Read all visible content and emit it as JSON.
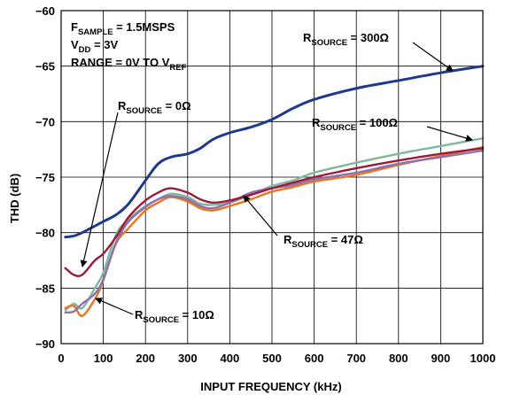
{
  "chart_data": {
    "type": "line",
    "xlabel": "INPUT FREQUENCY (kHz)",
    "ylabel": "THD (dB)",
    "xlim": [
      0,
      1000
    ],
    "ylim": [
      -90,
      -60
    ],
    "x_ticks": [
      "0",
      "100",
      "200",
      "300",
      "400",
      "500",
      "600",
      "700",
      "800",
      "900",
      "1000"
    ],
    "y_ticks": [
      "−60",
      "−65",
      "−70",
      "−75",
      "−80",
      "−85",
      "−90"
    ],
    "grid": true,
    "conditions": {
      "sample": {
        "main": "F",
        "sub": "SAMPLE",
        "rest": " = 1.5MSPS"
      },
      "vdd": {
        "main": "V",
        "sub": "DD",
        "rest": " = 3V"
      },
      "range": {
        "main": "RANGE = 0V TO V",
        "sub": "REF",
        "rest": ""
      }
    },
    "series": [
      {
        "color": "#1f3a8a",
        "label": {
          "main": "R",
          "sub": "SOURCE",
          "rest": " = 300Ω"
        },
        "x": [
          10,
          30,
          50,
          80,
          100,
          130,
          160,
          200,
          230,
          260,
          300,
          330,
          360,
          400,
          450,
          500,
          550,
          600,
          700,
          800,
          900,
          1000
        ],
        "y": [
          -80.4,
          -80.3,
          -80.0,
          -79.4,
          -79.0,
          -78.4,
          -77.4,
          -75.3,
          -73.8,
          -73.2,
          -72.9,
          -72.4,
          -71.6,
          -71.0,
          -70.5,
          -69.8,
          -68.8,
          -68.0,
          -67.0,
          -66.3,
          -65.6,
          -65.0
        ]
      },
      {
        "color": "#7fb89a",
        "label": {
          "main": "R",
          "sub": "SOURCE",
          "rest": " = 100Ω"
        },
        "x": [
          10,
          30,
          50,
          80,
          100,
          130,
          160,
          200,
          230,
          260,
          300,
          330,
          360,
          400,
          450,
          500,
          550,
          600,
          700,
          800,
          900,
          1000
        ],
        "y": [
          -87.0,
          -86.4,
          -86.8,
          -85.0,
          -83.6,
          -80.2,
          -78.8,
          -77.6,
          -77.0,
          -76.5,
          -76.8,
          -77.4,
          -77.5,
          -77.3,
          -76.6,
          -75.8,
          -75.3,
          -74.6,
          -73.7,
          -72.9,
          -72.2,
          -71.5
        ]
      },
      {
        "color": "#e8761e",
        "label": {
          "main": "R",
          "sub": "SOURCE",
          "rest": " = 47Ω"
        },
        "x": [
          10,
          30,
          50,
          80,
          100,
          130,
          160,
          200,
          230,
          260,
          300,
          330,
          360,
          400,
          450,
          500,
          550,
          600,
          700,
          800,
          900,
          1000
        ],
        "y": [
          -86.8,
          -86.6,
          -87.5,
          -86.0,
          -84.3,
          -81.0,
          -79.6,
          -78.0,
          -77.3,
          -76.8,
          -77.2,
          -77.8,
          -78.0,
          -77.6,
          -77.0,
          -76.3,
          -75.9,
          -75.4,
          -74.8,
          -73.9,
          -73.1,
          -72.3
        ]
      },
      {
        "color": "#9b1a3c",
        "label": {
          "main": "R",
          "sub": "SOURCE",
          "rest": " = 0Ω"
        },
        "x": [
          10,
          30,
          50,
          80,
          100,
          130,
          160,
          200,
          230,
          260,
          300,
          330,
          360,
          400,
          450,
          500,
          550,
          600,
          700,
          800,
          900,
          1000
        ],
        "y": [
          -83.2,
          -83.8,
          -83.8,
          -82.5,
          -81.9,
          -80.4,
          -78.6,
          -77.1,
          -76.4,
          -76.0,
          -76.4,
          -77.0,
          -77.3,
          -77.1,
          -76.6,
          -76.0,
          -75.5,
          -75.0,
          -74.2,
          -73.5,
          -72.9,
          -72.4
        ]
      },
      {
        "color": "#8e6fb0",
        "label": {
          "main": "R",
          "sub": "SOURCE",
          "rest": " = 10Ω"
        },
        "x": [
          10,
          30,
          50,
          80,
          100,
          130,
          160,
          200,
          230,
          260,
          300,
          330,
          360,
          400,
          450,
          500,
          550,
          600,
          700,
          800,
          900,
          1000
        ],
        "y": [
          -87.2,
          -87.1,
          -86.4,
          -85.5,
          -84.2,
          -80.9,
          -79.0,
          -77.7,
          -77.0,
          -76.7,
          -77.0,
          -77.6,
          -77.8,
          -77.3,
          -76.4,
          -76.0,
          -75.7,
          -75.2,
          -74.6,
          -73.8,
          -73.2,
          -72.6
        ]
      }
    ]
  }
}
